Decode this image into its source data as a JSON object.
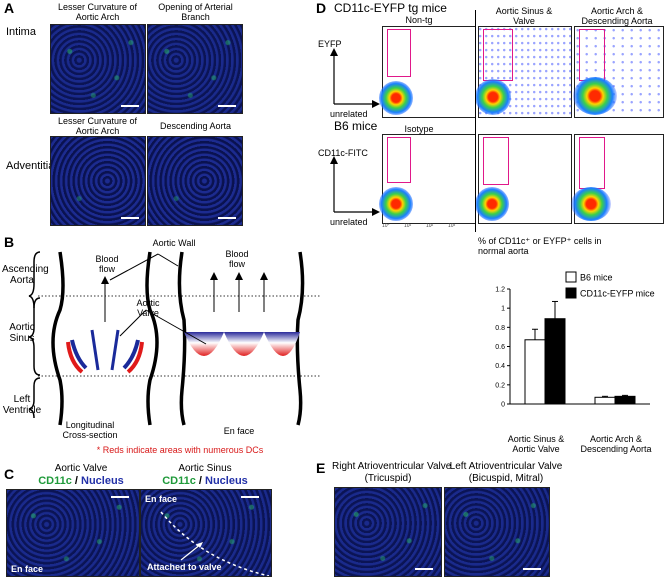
{
  "panelA": {
    "letter": "A",
    "row1_label": "Intima",
    "row2_label": "Adventitia",
    "img1_title": "Lesser Curvature of Aortic Arch",
    "img2_title": "Opening of Arterial Branch",
    "img3_title": "Lesser Curvature of Aortic Arch",
    "img4_title": "Descending Aorta"
  },
  "panelB": {
    "letter": "B",
    "ascending": "Ascending Aorta",
    "sinus": "Aortic Sinus",
    "ventricle": "Left Ventricle",
    "blood_flow_1": "Blood flow",
    "blood_flow_2": "Blood flow",
    "aortic_wall": "Aortic Wall",
    "aortic_valve": "Aortic Valve",
    "longitudinal": "Longitudinal Cross-section",
    "en_face": "En face",
    "note": "* Reds indicate areas with numerous DCs"
  },
  "panelC": {
    "letter": "C",
    "left_title": "Aortic Valve",
    "right_title": "Aortic Sinus",
    "cd11c": "CD11c",
    "slash": " / ",
    "nucleus": "Nucleus",
    "en_face_left": "En face",
    "en_face_right": "En face",
    "attached": "Attached to valve"
  },
  "panelD": {
    "letter": "D",
    "tg_title": "CD11c-EYFP tg mice",
    "b6_title": "B6 mice",
    "col1": "Non-tg",
    "col2": "Aortic Sinus & Valve",
    "col3": "Aortic Arch & Descending Aorta",
    "isotype": "Isotype",
    "eyfp": "EYFP",
    "cd11c_fitc": "CD11c-FITC",
    "unrelated_1": "unrelated",
    "unrelated_2": "unrelated",
    "tick_labels": [
      "10°",
      "10¹",
      "10²",
      "10³"
    ]
  },
  "panelE": {
    "letter": "E",
    "left_title": "Right Atrioventricular Valve",
    "left_sub": "(Tricuspid)",
    "right_title": "Left Atrioventricular Valve",
    "right_sub": "(Bicuspid, Mitral)"
  },
  "chart_data": {
    "type": "bar",
    "title": "% of CD11c⁺ or EYFP⁺ cells in normal aorta",
    "categories": [
      "Aortic Sinus & Aortic Valve",
      "Aortic Arch & Descending Aorta"
    ],
    "series": [
      {
        "name": "B6 mice",
        "values": [
          0.67,
          0.07
        ],
        "errors": [
          0.11,
          0.01
        ],
        "color": "#ffffff"
      },
      {
        "name": "CD11c-EYFP mice",
        "values": [
          0.89,
          0.08
        ],
        "errors": [
          0.18,
          0.01
        ],
        "color": "#000000"
      }
    ],
    "ylim": [
      0,
      1.2
    ],
    "yticks": [
      "0",
      "0.2",
      "0.4",
      "0.6",
      "0.8",
      "1",
      "1.2"
    ],
    "legend": "top-right"
  }
}
